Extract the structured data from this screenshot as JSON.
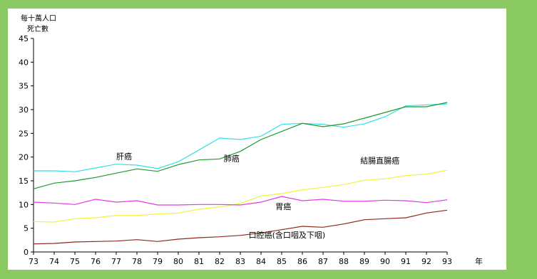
{
  "chart_data": {
    "type": "line",
    "ytitle_line1": "每十萬人口",
    "ytitle_line2": "死亡數",
    "xunit": "年",
    "x": [
      73,
      74,
      75,
      76,
      77,
      78,
      79,
      80,
      81,
      82,
      83,
      84,
      85,
      86,
      87,
      88,
      89,
      90,
      91,
      92,
      93
    ],
    "ylim": [
      0,
      45
    ],
    "yticks": [
      0,
      5,
      10,
      15,
      20,
      25,
      30,
      35,
      40,
      45
    ],
    "grid": false,
    "series": [
      {
        "name": "肝癌",
        "color": "#33e0e6",
        "values": [
          17.1,
          17.1,
          16.9,
          17.7,
          18.5,
          18.3,
          17.6,
          19.0,
          21.5,
          24.0,
          23.7,
          24.4,
          26.9,
          27.1,
          26.9,
          26.3,
          27.0,
          28.5,
          30.8,
          31.0,
          31.2
        ]
      },
      {
        "name": "肺癌",
        "color": "#1f9a2c",
        "values": [
          13.3,
          14.5,
          15.0,
          15.7,
          16.6,
          17.5,
          17.0,
          18.4,
          19.4,
          19.6,
          21.2,
          23.7,
          25.4,
          27.1,
          26.4,
          27.0,
          28.2,
          29.4,
          30.6,
          30.6,
          31.5
        ]
      },
      {
        "name": "結腸直腸癌",
        "color": "#f2f23a",
        "values": [
          6.4,
          6.3,
          7.0,
          7.2,
          7.7,
          7.7,
          8.0,
          8.2,
          9.0,
          9.5,
          10.2,
          11.8,
          12.3,
          13.1,
          13.6,
          14.2,
          15.1,
          15.4,
          16.1,
          16.4,
          17.2
        ]
      },
      {
        "name": "胃癌",
        "color": "#e239e2",
        "values": [
          10.5,
          10.3,
          10.0,
          11.1,
          10.5,
          10.8,
          9.9,
          9.9,
          10.0,
          10.0,
          9.9,
          10.5,
          11.7,
          10.8,
          11.1,
          10.7,
          10.7,
          10.9,
          10.8,
          10.4,
          11.0
        ]
      },
      {
        "name": "口腔癌(含口咽及下咽)",
        "color": "#8b2a1a",
        "values": [
          1.7,
          1.8,
          2.1,
          2.2,
          2.3,
          2.6,
          2.2,
          2.7,
          3.0,
          3.2,
          3.5,
          4.0,
          4.7,
          5.4,
          5.2,
          5.9,
          6.8,
          7.0,
          7.2,
          8.2,
          8.8
        ]
      }
    ]
  }
}
